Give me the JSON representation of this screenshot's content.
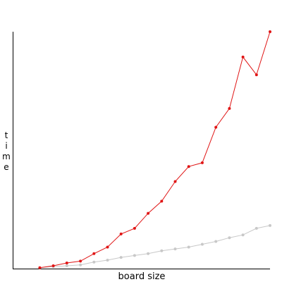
{
  "chart_data": {
    "type": "line",
    "title": "",
    "xlabel": "board size",
    "ylabel": "time",
    "grid": false,
    "x": [
      4,
      5,
      6,
      7,
      8,
      9,
      10,
      11,
      12,
      13,
      14,
      15,
      16,
      17,
      18,
      19,
      20,
      21
    ],
    "series": [
      {
        "color": "#e01515",
        "values": [
          1,
          3,
          6,
          8,
          16,
          23,
          37,
          43,
          59,
          72,
          93,
          109,
          113,
          151,
          171,
          226,
          207,
          253
        ]
      },
      {
        "color": "#c8c8c8",
        "values": [
          1,
          2,
          3,
          4,
          7,
          9,
          12,
          14,
          16,
          19,
          21,
          23,
          26,
          29,
          33,
          36,
          43,
          46
        ]
      }
    ],
    "xlim": [
      2,
      21
    ],
    "ylim": [
      0,
      253
    ]
  }
}
